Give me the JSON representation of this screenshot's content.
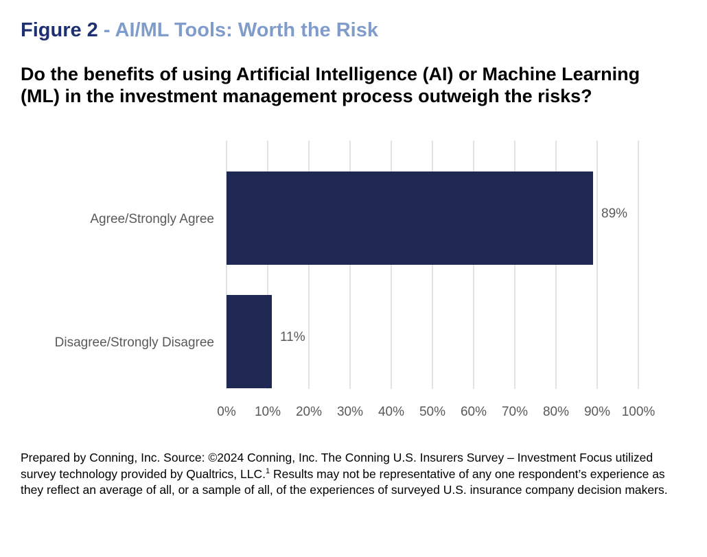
{
  "figure": {
    "number": "Figure 2",
    "separator": "-",
    "subtitle": "AI/ML Tools: Worth the Risk"
  },
  "question": "Do the benefits of using Artificial Intelligence (AI) or Machine Learning (ML) in the investment management process outweigh the risks?",
  "chart_data": {
    "type": "bar",
    "orientation": "horizontal",
    "categories": [
      "Agree/Strongly Agree",
      "Disagree/Strongly Disagree"
    ],
    "values": [
      89,
      11
    ],
    "data_labels": [
      "89%",
      "11%"
    ],
    "xlim": [
      0,
      100
    ],
    "x_ticks": [
      0,
      10,
      20,
      30,
      40,
      50,
      60,
      70,
      80,
      90,
      100
    ],
    "x_tick_labels": [
      "0%",
      "10%",
      "20%",
      "30%",
      "40%",
      "50%",
      "60%",
      "70%",
      "80%",
      "90%",
      "100%"
    ],
    "grid": true,
    "bar_color": "#1f2753",
    "grid_color": "#d9d9d9",
    "label_color": "#595959"
  },
  "footnote": {
    "text_before": "Prepared by Conning, Inc. Source: ©2024 Conning, Inc. The Conning U.S. Insurers Survey – Investment Focus utilized survey technology provided by Qualtrics, LLC.",
    "sup": "1",
    "text_after": "  Results may not be representative of any one respondent’s experience as they reflect an average of all, or a sample of all, of the experiences of surveyed U.S. insurance company decision makers."
  }
}
